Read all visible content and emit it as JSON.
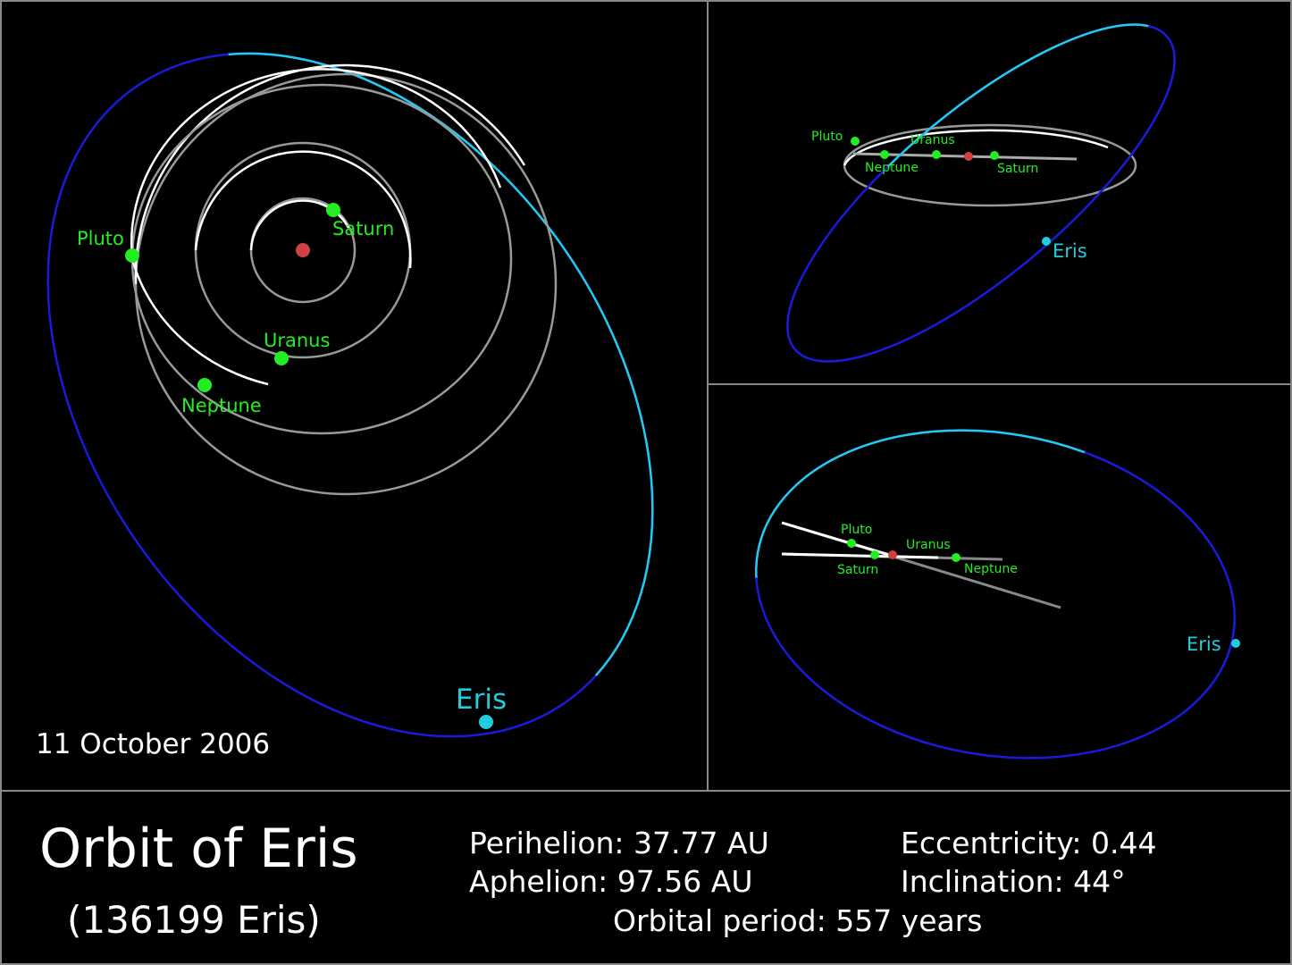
{
  "main_view": {
    "labels": [
      "Pluto",
      "Saturn",
      "Uranus",
      "Neptune",
      "Eris"
    ],
    "date": "11 October 2006"
  },
  "top_view": {
    "labels": [
      "Pluto",
      "Uranus",
      "Neptune",
      "Saturn",
      "Eris"
    ]
  },
  "side_view": {
    "labels": [
      "Pluto",
      "Uranus",
      "Saturn",
      "Neptune",
      "Eris"
    ]
  },
  "footer": {
    "title": "Orbit of Eris",
    "subtitle": "(136199 Eris)",
    "perihelion": "Perihelion: 37.77 AU",
    "aphelion": "Aphelion: 97.56 AU",
    "eccentricity": "Eccentricity: 0.44",
    "inclination": "Inclination: 44°",
    "period": "Orbital period: 557 years"
  }
}
